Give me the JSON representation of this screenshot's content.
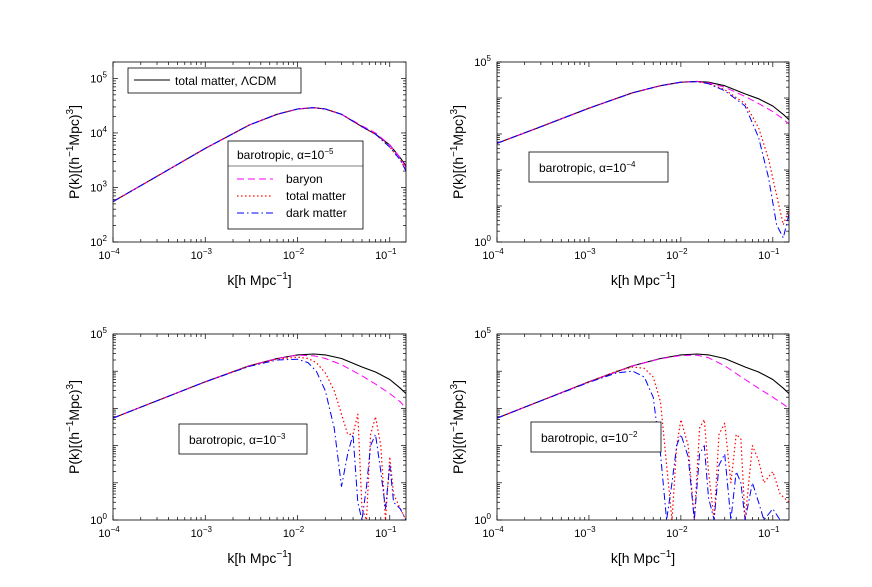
{
  "figure": {
    "x_axis_label": "k[h Mpc",
    "x_axis_label_exp": "−1",
    "x_axis_label_end": "]",
    "y_axis_label_a": "P(k)[(h",
    "y_axis_label_exp1": "−1",
    "y_axis_label_b": "Mpc)",
    "y_axis_label_exp2": "3",
    "y_axis_label_end": "]"
  },
  "colors": {
    "total_matter_lcdm": "#000000",
    "baryon": "#ff00ff",
    "total_matter": "#ff0000",
    "dark_matter": "#0000ff"
  },
  "chart_data": [
    {
      "type": "line",
      "panel": "top-left",
      "xscale": "log",
      "yscale": "log",
      "xlim": [
        0.0001,
        0.15
      ],
      "ylim": [
        100,
        200000
      ],
      "x_ticks": [
        {
          "base": "10",
          "exp": "−4"
        },
        {
          "base": "10",
          "exp": "−3"
        },
        {
          "base": "10",
          "exp": "−2"
        },
        {
          "base": "10",
          "exp": "−1"
        }
      ],
      "y_ticks": [
        {
          "base": "10",
          "exp": "2"
        },
        {
          "base": "10",
          "exp": "3"
        },
        {
          "base": "10",
          "exp": "4"
        },
        {
          "base": "10",
          "exp": "5"
        }
      ],
      "legend_top": {
        "entries": [
          {
            "label": "total matter, ",
            "label_greek": "Λ",
            "label_end": "CDM",
            "series": "total_matter_lcdm"
          }
        ],
        "placement": "top-left"
      },
      "legend_box": {
        "title": "barotropic, ",
        "title_greek": "α",
        "title_mid": "=10",
        "title_exp": "−5",
        "entries": [
          {
            "label": "baryon",
            "series": "baryon"
          },
          {
            "label": "total matter",
            "series": "total_matter"
          },
          {
            "label": "dark matter",
            "series": "dark_matter"
          }
        ],
        "placement": "center-right"
      },
      "series": [
        {
          "name": "total matter, ΛCDM",
          "style": "solid",
          "x": [
            0.0001,
            0.0003,
            0.001,
            0.003,
            0.006,
            0.01,
            0.015,
            0.02,
            0.03,
            0.05,
            0.07,
            0.1,
            0.13,
            0.15
          ],
          "y": [
            550,
            1600,
            5200,
            14000,
            22000,
            27500,
            29000,
            27500,
            22000,
            13000,
            9500,
            6000,
            3500,
            2500
          ]
        },
        {
          "name": "baryon",
          "style": "dashed",
          "x": [
            0.0001,
            0.0003,
            0.001,
            0.003,
            0.006,
            0.01,
            0.015,
            0.02,
            0.03,
            0.05,
            0.07,
            0.1,
            0.13,
            0.15
          ],
          "y": [
            550,
            1600,
            5200,
            14000,
            22000,
            27500,
            29000,
            27500,
            22000,
            13500,
            10000,
            6000,
            3500,
            2300
          ]
        },
        {
          "name": "total matter",
          "style": "dotted",
          "x": [
            0.0001,
            0.0003,
            0.001,
            0.003,
            0.006,
            0.01,
            0.015,
            0.02,
            0.03,
            0.05,
            0.07,
            0.1,
            0.13,
            0.15
          ],
          "y": [
            550,
            1600,
            5200,
            14000,
            22000,
            27500,
            29000,
            27500,
            22000,
            13000,
            9500,
            5500,
            3200,
            2100
          ]
        },
        {
          "name": "dark matter",
          "style": "dashdot",
          "x": [
            0.0001,
            0.0003,
            0.001,
            0.003,
            0.006,
            0.01,
            0.015,
            0.02,
            0.03,
            0.05,
            0.07,
            0.1,
            0.13,
            0.15
          ],
          "y": [
            550,
            1600,
            5200,
            14000,
            22000,
            27500,
            29000,
            27500,
            22000,
            13000,
            9500,
            5500,
            3200,
            2000
          ]
        }
      ]
    },
    {
      "type": "line",
      "panel": "top-right",
      "xscale": "log",
      "yscale": "log",
      "xlim": [
        0.0001,
        0.15
      ],
      "ylim": [
        1,
        100000
      ],
      "x_ticks": [
        {
          "base": "10",
          "exp": "−4"
        },
        {
          "base": "10",
          "exp": "−3"
        },
        {
          "base": "10",
          "exp": "−2"
        },
        {
          "base": "10",
          "exp": "−1"
        }
      ],
      "y_ticks": [
        {
          "base": "10",
          "exp": "0"
        },
        {
          "base": "10",
          "exp": "5"
        }
      ],
      "legend_box": {
        "title": "barotropic, ",
        "title_greek": "α",
        "title_mid": "=10",
        "title_exp": "−4",
        "placement": "center-left"
      },
      "series": [
        {
          "name": "total matter, ΛCDM",
          "style": "solid",
          "x": [
            0.0001,
            0.0003,
            0.001,
            0.003,
            0.006,
            0.01,
            0.015,
            0.02,
            0.03,
            0.05,
            0.07,
            0.1,
            0.13,
            0.15
          ],
          "y": [
            550,
            1600,
            5200,
            14000,
            22000,
            27500,
            29000,
            27500,
            22000,
            13000,
            9500,
            6000,
            3500,
            2500
          ]
        },
        {
          "name": "baryon",
          "style": "dashed",
          "x": [
            0.0001,
            0.0003,
            0.001,
            0.003,
            0.006,
            0.01,
            0.015,
            0.02,
            0.03,
            0.05,
            0.07,
            0.1,
            0.13,
            0.15
          ],
          "y": [
            550,
            1600,
            5200,
            14000,
            22000,
            27500,
            28800,
            26500,
            20000,
            11000,
            7000,
            4200,
            2600,
            1900
          ]
        },
        {
          "name": "total matter",
          "style": "dotted",
          "x": [
            0.0001,
            0.0003,
            0.001,
            0.003,
            0.006,
            0.01,
            0.015,
            0.02,
            0.03,
            0.05,
            0.07,
            0.09,
            0.11,
            0.13,
            0.15
          ],
          "y": [
            550,
            1600,
            5200,
            14000,
            22000,
            27500,
            28500,
            25500,
            17000,
            7000,
            1500,
            200,
            20,
            3,
            8
          ]
        },
        {
          "name": "dark matter",
          "style": "dashdot",
          "x": [
            0.0001,
            0.0003,
            0.001,
            0.003,
            0.006,
            0.01,
            0.015,
            0.02,
            0.03,
            0.05,
            0.07,
            0.09,
            0.11,
            0.13,
            0.15
          ],
          "y": [
            550,
            1600,
            5200,
            14000,
            22000,
            27500,
            28300,
            25000,
            16000,
            6000,
            800,
            60,
            3,
            1.3,
            6
          ]
        }
      ]
    },
    {
      "type": "line",
      "panel": "bottom-left",
      "xscale": "log",
      "yscale": "log",
      "xlim": [
        0.0001,
        0.15
      ],
      "ylim": [
        1,
        100000
      ],
      "x_ticks": [
        {
          "base": "10",
          "exp": "−4"
        },
        {
          "base": "10",
          "exp": "−3"
        },
        {
          "base": "10",
          "exp": "−2"
        },
        {
          "base": "10",
          "exp": "−1"
        }
      ],
      "y_ticks": [
        {
          "base": "10",
          "exp": "0"
        },
        {
          "base": "10",
          "exp": "5"
        }
      ],
      "legend_box": {
        "title": "barotropic, ",
        "title_greek": "α",
        "title_mid": "=10",
        "title_exp": "−3",
        "placement": "center-left"
      },
      "series": [
        {
          "name": "total matter, ΛCDM",
          "style": "solid",
          "x": [
            0.0001,
            0.0003,
            0.001,
            0.003,
            0.006,
            0.01,
            0.015,
            0.02,
            0.03,
            0.05,
            0.07,
            0.1,
            0.13,
            0.15
          ],
          "y": [
            550,
            1600,
            5200,
            14000,
            22000,
            27500,
            29000,
            27500,
            22000,
            13000,
            9500,
            6000,
            3500,
            2500
          ]
        },
        {
          "name": "baryon",
          "style": "dashed",
          "x": [
            0.0001,
            0.0003,
            0.001,
            0.003,
            0.006,
            0.01,
            0.015,
            0.02,
            0.03,
            0.05,
            0.07,
            0.1,
            0.13,
            0.15
          ],
          "y": [
            550,
            1600,
            5200,
            14000,
            22000,
            27000,
            26000,
            22000,
            15000,
            7500,
            4500,
            2500,
            1500,
            1000
          ]
        },
        {
          "name": "total matter",
          "style": "dotted",
          "x": [
            0.0001,
            0.0003,
            0.001,
            0.003,
            0.006,
            0.01,
            0.013,
            0.016,
            0.02,
            0.025,
            0.03,
            0.035,
            0.04,
            0.045,
            0.05,
            0.056,
            0.062,
            0.07,
            0.08,
            0.09,
            0.1,
            0.11,
            0.13,
            0.15
          ],
          "y": [
            550,
            1600,
            5200,
            14000,
            21000,
            24000,
            22000,
            17000,
            9000,
            3000,
            700,
            200,
            200,
            700,
            2,
            1,
            200,
            600,
            100,
            1,
            50,
            5,
            2,
            1
          ]
        },
        {
          "name": "dark matter",
          "style": "dashdot",
          "x": [
            0.0001,
            0.0003,
            0.001,
            0.003,
            0.006,
            0.01,
            0.013,
            0.016,
            0.02,
            0.025,
            0.03,
            0.035,
            0.04,
            0.045,
            0.05,
            0.056,
            0.062,
            0.07,
            0.08,
            0.09,
            0.1,
            0.11,
            0.13,
            0.15
          ],
          "y": [
            550,
            1600,
            5200,
            13500,
            20000,
            21000,
            17000,
            10000,
            3000,
            300,
            8,
            60,
            200,
            3,
            1,
            8,
            100,
            200,
            20,
            2,
            30,
            3,
            2,
            1
          ]
        }
      ]
    },
    {
      "type": "line",
      "panel": "bottom-right",
      "xscale": "log",
      "yscale": "log",
      "xlim": [
        0.0001,
        0.15
      ],
      "ylim": [
        1,
        100000
      ],
      "x_ticks": [
        {
          "base": "10",
          "exp": "−4"
        },
        {
          "base": "10",
          "exp": "−3"
        },
        {
          "base": "10",
          "exp": "−2"
        },
        {
          "base": "10",
          "exp": "−1"
        }
      ],
      "y_ticks": [
        {
          "base": "10",
          "exp": "0"
        },
        {
          "base": "10",
          "exp": "5"
        }
      ],
      "legend_box": {
        "title": "barotropic, ",
        "title_greek": "α",
        "title_mid": "=10",
        "title_exp": "−2",
        "placement": "center-left"
      },
      "series": [
        {
          "name": "total matter, ΛCDM",
          "style": "solid",
          "x": [
            0.0001,
            0.0003,
            0.001,
            0.003,
            0.006,
            0.01,
            0.015,
            0.02,
            0.03,
            0.05,
            0.07,
            0.1,
            0.13,
            0.15
          ],
          "y": [
            550,
            1600,
            5200,
            14000,
            22000,
            27500,
            29000,
            27500,
            22000,
            13000,
            9500,
            6000,
            3500,
            2500
          ]
        },
        {
          "name": "baryon",
          "style": "dashed",
          "x": [
            0.0001,
            0.0003,
            0.001,
            0.003,
            0.006,
            0.01,
            0.015,
            0.02,
            0.03,
            0.05,
            0.07,
            0.1,
            0.13,
            0.15
          ],
          "y": [
            550,
            1600,
            5200,
            14000,
            21500,
            26500,
            27000,
            23000,
            14000,
            6000,
            3500,
            2000,
            1300,
            1000
          ]
        },
        {
          "name": "total matter",
          "style": "dotted",
          "x": [
            0.0001,
            0.0003,
            0.001,
            0.002,
            0.003,
            0.004,
            0.005,
            0.006,
            0.007,
            0.008,
            0.009,
            0.01,
            0.012,
            0.014,
            0.016,
            0.018,
            0.02,
            0.023,
            0.026,
            0.03,
            0.035,
            0.04,
            0.045,
            0.05,
            0.06,
            0.07,
            0.08,
            0.1,
            0.12,
            0.15
          ],
          "y": [
            550,
            1600,
            5200,
            10000,
            13000,
            12000,
            7000,
            1500,
            30,
            1,
            100,
            500,
            100,
            1,
            300,
            500,
            20,
            1,
            200,
            400,
            10,
            200,
            150,
            1,
            100,
            40,
            10,
            20,
            5,
            3
          ]
        },
        {
          "name": "dark matter",
          "style": "dashdot",
          "x": [
            0.0001,
            0.0003,
            0.001,
            0.002,
            0.003,
            0.004,
            0.005,
            0.006,
            0.007,
            0.008,
            0.009,
            0.01,
            0.012,
            0.014,
            0.016,
            0.018,
            0.02,
            0.023,
            0.026,
            0.03,
            0.035,
            0.04,
            0.045,
            0.05,
            0.06,
            0.07,
            0.08,
            0.1,
            0.12,
            0.15
          ],
          "y": [
            550,
            1600,
            5000,
            9000,
            10000,
            7000,
            2000,
            60,
            1,
            10,
            100,
            200,
            50,
            1,
            60,
            100,
            4,
            1,
            30,
            60,
            1,
            20,
            10,
            1,
            10,
            3,
            1,
            2,
            1,
            1
          ]
        }
      ]
    }
  ]
}
